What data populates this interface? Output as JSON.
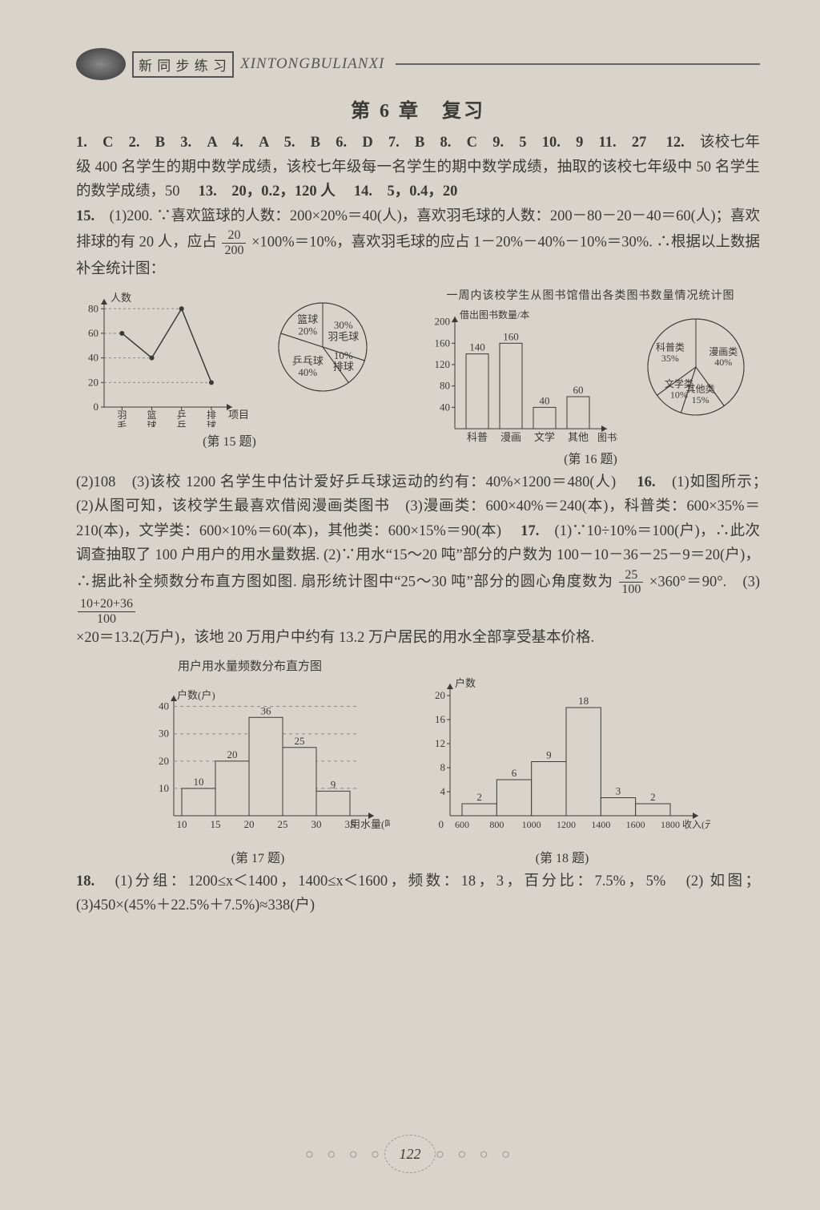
{
  "header": {
    "box_label": "新 同 步 练 习",
    "pinyin": "XINTONGBULIANXI"
  },
  "chapter_title": "第 6 章　复习",
  "answers_line": "1.　C　2.　B　3.　A　4.　A　5.　B　6.　D　7.　B　8.　C　9.　5　10.　9　11.　27　",
  "q12_prefix": "12.　",
  "q12_text": "该校七年级 400 名学生的期中数学成绩，该校七年级每一名学生的期中数学成绩，抽取的该校七年级中 50 名学生的数学成绩，50　",
  "q13": "13.　20，0.2，120 人　",
  "q14": "14.　5，0.4，20　",
  "q15_prefix": "15.　",
  "q15_text_a": "(1)200. ∵喜欢篮球的人数：200×20%＝40(人)，喜欢羽毛球的人数：200－80－20－40＝60(人)；喜欢排球的有 20 人，应占",
  "q15_frac1_num": "20",
  "q15_frac1_den": "200",
  "q15_text_b": "×100%＝10%，喜欢羽毛球的应占 1－20%－40%－10%＝30%. ∴根据以上数据补全统计图：",
  "chart15_line": {
    "ylabel": "人数",
    "xlabel": "项目",
    "categories": [
      "羽毛球",
      "篮球",
      "乒乓球",
      "排球"
    ],
    "values": [
      60,
      40,
      80,
      20
    ],
    "yticks": [
      0,
      20,
      40,
      60,
      80
    ],
    "ylim": [
      0,
      88
    ],
    "line_color": "#3a3a35",
    "axis_color": "#3a3a35",
    "dash_color": "#888",
    "fontsize": 13
  },
  "chart15_pie": {
    "slices": [
      {
        "label": "羽毛球",
        "pct": 30,
        "label_text": "30%\n羽毛球"
      },
      {
        "label": "排球",
        "pct": 10,
        "label_text": "10%\n排球"
      },
      {
        "label": "乒乓球",
        "pct": 40,
        "label_text": "乒乓球\n40%"
      },
      {
        "label": "篮球",
        "pct": 20,
        "label_text": "篮球\n20%"
      }
    ],
    "outline_color": "#3a3a35",
    "fontsize": 13
  },
  "fig15_caption": "(第 15 题)",
  "chart16_title_above": "一周内该校学生从图书馆借出各类图书数量情况统计图",
  "chart16_bar": {
    "ylabel": "借出图书数量/本",
    "xlabel": "图书种类",
    "categories": [
      "科普",
      "漫画",
      "文学",
      "其他"
    ],
    "values": [
      140,
      160,
      40,
      60
    ],
    "value_labels": [
      "140",
      "160",
      "40",
      "60"
    ],
    "yticks": [
      40,
      80,
      120,
      160,
      200
    ],
    "ylim": [
      0,
      210
    ],
    "bar_color_fill": "#d8d4cc",
    "bar_outline": "#3a3a35",
    "axis_color": "#3a3a35",
    "fontsize": 13
  },
  "chart16_pie": {
    "slices": [
      {
        "label": "漫画类",
        "pct": 40,
        "label_text": "漫画类\n40%"
      },
      {
        "label": "其他类",
        "pct": 15,
        "label_text": "其他类\n15%"
      },
      {
        "label": "文学类",
        "pct": 10,
        "label_text": "文学类\n10%"
      },
      {
        "label": "科普类",
        "pct": 35,
        "label_text": "科普类\n35%"
      }
    ],
    "outline_color": "#3a3a35",
    "fontsize": 12
  },
  "fig16_caption": "(第 16 题)",
  "para2_a": "(2)108　(3)该校 1200 名学生中估计爱好乒乓球运动的约有：40%×1200＝480(人)　",
  "q16_prefix": "16.　",
  "q16_text": "(1)如图所示；　(2)从图可知，该校学生最喜欢借阅漫画类图书　(3)漫画类：600×40%＝240(本)，科普类：600×35%＝210(本)，文学类：600×10%＝60(本)，其他类：600×15%＝90(本)　",
  "q17_prefix": "17.　",
  "q17_text_a": "(1)∵10÷10%＝100(户)，∴此次调查抽取了 100 户用户的用水量数据. (2)∵用水“15～20 吨”部分的户数为 100－10－36－25－9＝20(户)，∴据此补全频数分布直方图如图. 扇形统计图中“25～30 吨”部分的圆心角度数为",
  "q17_frac1_num": "25",
  "q17_frac1_den": "100",
  "q17_text_b": "×360°＝90°.　(3)",
  "q17_frac2_num": "10+20+36",
  "q17_frac2_den": "100",
  "q17_text_c": "×20＝13.2(万户)，该地 20 万用户中约有 13.2 万户居民的用水全部享受基本价格.",
  "chart17_bar": {
    "title": "用户用水量频数分布直方图",
    "ylabel": "户数(户)",
    "xlabel": "用水量(吨)",
    "edges": [
      10,
      15,
      20,
      25,
      30,
      35
    ],
    "values": [
      10,
      20,
      36,
      25,
      9
    ],
    "value_labels": [
      "10",
      "20",
      "36",
      "25",
      "9"
    ],
    "yticks": [
      10,
      20,
      30,
      40
    ],
    "ylim": [
      0,
      44
    ],
    "bar_color_fill": "#d8d4cc",
    "bar_outline": "#3a3a35",
    "dash_color": "#888",
    "fontsize": 13
  },
  "chart18_bar": {
    "ylabel": "户数",
    "xlabel": "收入(元)",
    "edges": [
      600,
      800,
      1000,
      1200,
      1400,
      1600,
      1800
    ],
    "values": [
      2,
      6,
      9,
      18,
      3,
      2
    ],
    "value_labels": [
      "2",
      "6",
      "9",
      "18",
      "3",
      "2"
    ],
    "yticks": [
      4,
      8,
      12,
      16,
      20
    ],
    "ylim": [
      0,
      22
    ],
    "bar_color_fill": "#d8d4cc",
    "bar_outline": "#3a3a35",
    "axis_color": "#3a3a35",
    "fontsize": 13
  },
  "fig17_caption": "(第 17 题)",
  "fig18_caption": "(第 18 题)",
  "q18_prefix": "18.　",
  "q18_text": "(1)分组：1200≤x＜1400，1400≤x＜1600，频数：18，3，百分比：7.5%，5%　(2) 如图；(3)450×(45%＋22.5%＋7.5%)≈338(户)",
  "page_number": "122"
}
